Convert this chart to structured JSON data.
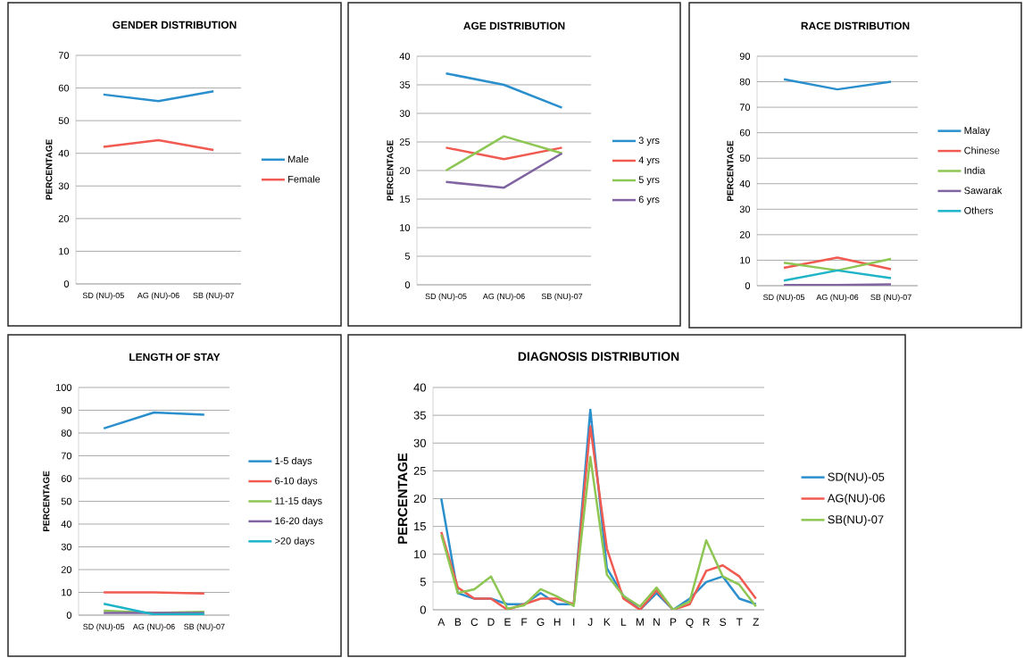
{
  "chart_data": [
    {
      "type": "line",
      "title": "GENDER DISTRIBUTION",
      "ylabel": "PERCENTAGE",
      "categories": [
        "SD (NU)-05",
        "AG (NU)-06",
        "SB (NU)-07"
      ],
      "ylim": [
        0,
        70
      ],
      "yticks": [
        0,
        10,
        20,
        30,
        40,
        50,
        60,
        70
      ],
      "grid": "y",
      "legend": "right",
      "series": [
        {
          "name": "Male",
          "color": "#2b8fcd",
          "values": [
            58,
            56,
            59
          ]
        },
        {
          "name": "Female",
          "color": "#f05a50",
          "values": [
            42,
            44,
            41
          ]
        }
      ]
    },
    {
      "type": "line",
      "title": "AGE DISTRIBUTION",
      "ylabel": "PERCENTAGE",
      "categories": [
        "SD (NU)-05",
        "AG (NU)-06",
        "SB (NU)-07"
      ],
      "ylim": [
        0,
        40
      ],
      "yticks": [
        0,
        5,
        10,
        15,
        20,
        25,
        30,
        35,
        40
      ],
      "grid": "y",
      "legend": "right",
      "series": [
        {
          "name": "3 yrs",
          "color": "#2b8fcd",
          "values": [
            37,
            35,
            31
          ]
        },
        {
          "name": "4 yrs",
          "color": "#f05a50",
          "values": [
            24,
            22,
            24
          ]
        },
        {
          "name": "5 yrs",
          "color": "#8dc653",
          "values": [
            20,
            26,
            23
          ]
        },
        {
          "name": "6 yrs",
          "color": "#8064a2",
          "values": [
            18,
            17,
            23
          ]
        }
      ]
    },
    {
      "type": "line",
      "title": "RACE DISTRIBUTION",
      "ylabel": "PERCENTAGE",
      "categories": [
        "SD (NU)-05",
        "AG (NU)-06",
        "SB (NU)-07"
      ],
      "ylim": [
        0,
        90
      ],
      "yticks": [
        0,
        10,
        20,
        30,
        40,
        50,
        60,
        70,
        80,
        90
      ],
      "grid": "y",
      "legend": "right",
      "series": [
        {
          "name": "Malay",
          "color": "#2b8fcd",
          "values": [
            81,
            77,
            80
          ]
        },
        {
          "name": "Chinese",
          "color": "#f05a50",
          "values": [
            7,
            11,
            6.5
          ]
        },
        {
          "name": "India",
          "color": "#8dc653",
          "values": [
            9,
            6,
            10.5
          ]
        },
        {
          "name": "Sawarak",
          "color": "#8064a2",
          "values": [
            0.3,
            0.3,
            0.5
          ]
        },
        {
          "name": "Others",
          "color": "#1eb4c8",
          "values": [
            2,
            6,
            3
          ]
        }
      ]
    },
    {
      "type": "line",
      "title": "LENGTH OF STAY",
      "ylabel": "PERCENTAGE",
      "categories": [
        "SD (NU)-05",
        "AG (NU)-06",
        "SB (NU)-07"
      ],
      "ylim": [
        0,
        100
      ],
      "yticks": [
        0,
        10,
        20,
        30,
        40,
        50,
        60,
        70,
        80,
        90,
        100
      ],
      "grid": "y",
      "legend": "right",
      "series": [
        {
          "name": "1-5 days",
          "color": "#2b8fcd",
          "values": [
            82,
            89,
            88
          ]
        },
        {
          "name": "6-10 days",
          "color": "#f05a50",
          "values": [
            10,
            10,
            9.5
          ]
        },
        {
          "name": "11-15 days",
          "color": "#8dc653",
          "values": [
            2,
            1,
            1.5
          ]
        },
        {
          "name": "16-20 days",
          "color": "#8064a2",
          "values": [
            1,
            1,
            1
          ]
        },
        {
          "name": ">20 days",
          "color": "#1eb4c8",
          "values": [
            5,
            0.3,
            0.5
          ]
        }
      ]
    },
    {
      "type": "line",
      "title": "DIAGNOSIS DISTRIBUTION",
      "ylabel": "PERCENTAGE",
      "categories": [
        "A",
        "B",
        "C",
        "D",
        "E",
        "F",
        "G",
        "H",
        "I",
        "J",
        "K",
        "L",
        "M",
        "N",
        "P",
        "Q",
        "R",
        "S",
        "T",
        "Z"
      ],
      "ylim": [
        0,
        40
      ],
      "yticks": [
        0,
        5,
        10,
        15,
        20,
        25,
        30,
        35,
        40
      ],
      "grid": "y",
      "legend": "right",
      "series": [
        {
          "name": "SD(NU)-05",
          "color": "#2b8fcd",
          "values": [
            20,
            3,
            2,
            2,
            1,
            1,
            3,
            1,
            1,
            36,
            7.5,
            2.5,
            0,
            3,
            0,
            2,
            5,
            6,
            2,
            1
          ]
        },
        {
          "name": "AG(NU)-06",
          "color": "#f05a50",
          "values": [
            14,
            4,
            2,
            2,
            0,
            1,
            2,
            2,
            1,
            33,
            11,
            2,
            0,
            3.5,
            0,
            1,
            7,
            8,
            6,
            2
          ]
        },
        {
          "name": "SB(NU)-07",
          "color": "#8dc653",
          "values": [
            13.5,
            3,
            3.7,
            6,
            0.2,
            0.8,
            3.7,
            2.4,
            0.7,
            27.5,
            6.3,
            2.5,
            0.6,
            4,
            0,
            1.5,
            12.5,
            6,
            4.5,
            0.6
          ]
        }
      ]
    }
  ]
}
